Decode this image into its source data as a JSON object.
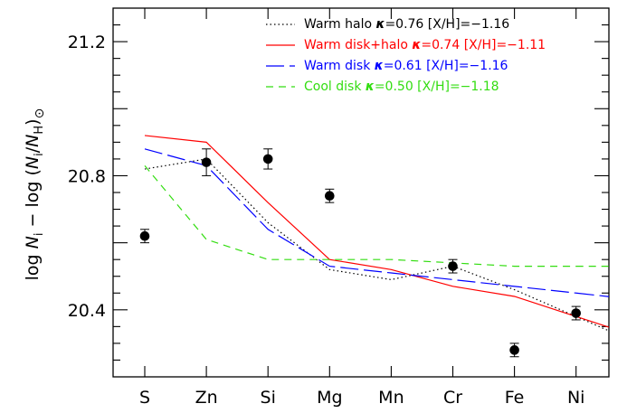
{
  "chart_data": {
    "type": "line",
    "categories": [
      "S",
      "Zn",
      "Si",
      "Mg",
      "Mn",
      "Cr",
      "Fe",
      "Ni"
    ],
    "ylabel_parts": {
      "prefix": "log ",
      "n": "N",
      "i_sub": "i",
      "mid": " − log (",
      "n2": "N",
      "i_sub2": "i",
      "slash": "/",
      "n3": "N",
      "h_sub": "H",
      "suffix": ")",
      "odot": "⊙"
    },
    "ylim": [
      20.2,
      21.3
    ],
    "y_ticks": [
      20.4,
      20.8,
      21.2
    ],
    "y_tick_labels": [
      "20.4",
      "20.8",
      "21.2"
    ],
    "observed": {
      "values": [
        20.62,
        20.84,
        20.85,
        20.74,
        null,
        20.53,
        20.28,
        20.39
      ],
      "errors": [
        0.02,
        0.04,
        0.03,
        0.02,
        null,
        0.02,
        0.02,
        0.02
      ]
    },
    "series": [
      {
        "name": "Warm halo",
        "kappa_label": "κ",
        "kappa_value": "=0.76 [X/H]=−1.16",
        "color": "#000000",
        "style": "dotted",
        "values": [
          20.82,
          20.85,
          20.66,
          20.52,
          20.49,
          20.53,
          20.46,
          20.38
        ]
      },
      {
        "name": "Warm disk+halo",
        "kappa_label": "κ",
        "kappa_value": "=0.74 [X/H]=−1.11",
        "color": "#ff0000",
        "style": "solid",
        "values": [
          20.92,
          20.9,
          20.72,
          20.55,
          20.52,
          20.47,
          20.44,
          20.38
        ]
      },
      {
        "name": "Warm disk",
        "kappa_label": "κ",
        "kappa_value": "=0.61 [X/H]=−1.16",
        "color": "#0000ff",
        "style": "longdash",
        "values": [
          20.88,
          20.83,
          20.64,
          20.53,
          20.51,
          20.49,
          20.47,
          20.45
        ]
      },
      {
        "name": "Cool disk",
        "kappa_label": "κ",
        "kappa_value": "=0.50 [X/H]=−1.18",
        "color": "#33dd11",
        "style": "dashed",
        "values": [
          20.83,
          20.61,
          20.55,
          20.55,
          20.55,
          20.54,
          20.53,
          20.53
        ]
      }
    ],
    "grid": false,
    "legend_position": "top-right"
  }
}
